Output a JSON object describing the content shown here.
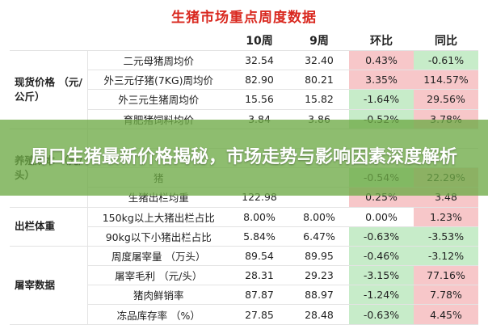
{
  "title": "生猪市场重点周度数据",
  "overlay_text": "周口生猪最新价格揭秘，市场走势与影响因素深度解析",
  "headers": {
    "week10": "10周",
    "week9": "9周",
    "mom": "环比",
    "yoy": "同比"
  },
  "categories": {
    "price": "现货价格 （元/公斤）",
    "cost": "养殖成本 （元/头）",
    "slaughter_out": "出栏体重",
    "slaughter": "屠宰数据"
  },
  "rows": [
    {
      "metric": "二元母猪周均价",
      "w10": "32.54",
      "w9": "32.40",
      "mom": "0.43%",
      "yoy": "-0.61%",
      "mom_dir": "up",
      "yoy_dir": "down"
    },
    {
      "metric": "外三元仔猪(7KG)周均价",
      "w10": "82.90",
      "w9": "80.21",
      "mom": "3.35%",
      "yoy": "114.57%",
      "mom_dir": "up",
      "yoy_dir": "up"
    },
    {
      "metric": "外三元生猪周均价",
      "w10": "15.56",
      "w9": "15.82",
      "mom": "-1.64%",
      "yoy": "29.56%",
      "mom_dir": "down",
      "yoy_dir": "up"
    },
    {
      "metric": "育肥猪饲料均价",
      "w10": "3.84",
      "w9": "3.86",
      "mom": "-0.52%",
      "yoy": "3.78%",
      "mom_dir": "down",
      "yoy_dir": "up"
    },
    {
      "metric": "",
      "w10": "",
      "w9": "",
      "mom": "",
      "yoy": "",
      "mom_dir": "",
      "yoy_dir": ""
    },
    {
      "metric": "",
      "w10": "",
      "w9": "",
      "mom": "",
      "yoy": "",
      "mom_dir": "",
      "yoy_dir": ""
    },
    {
      "metric": "猪",
      "w10": "",
      "w9": "",
      "mom": "-0.54%",
      "yoy": "22.29%",
      "mom_dir": "down",
      "yoy_dir": "up"
    },
    {
      "metric": "生猪出栏均重",
      "w10": "122.98",
      "w9": "",
      "mom": "0.25%",
      "yoy": "3.48",
      "mom_dir": "up",
      "yoy_dir": "up"
    },
    {
      "metric": "150kg以上大猪出栏占比",
      "w10": "8.00%",
      "w9": "8.00%",
      "mom": "0.00%",
      "yoy": "1.23%",
      "mom_dir": "",
      "yoy_dir": "up"
    },
    {
      "metric": "90kg以下小猪出栏占比",
      "w10": "5.84%",
      "w9": "6.47%",
      "mom": "-0.63%",
      "yoy": "-3.53%",
      "mom_dir": "down",
      "yoy_dir": "down"
    },
    {
      "metric": "周度屠宰量 （万头）",
      "w10": "89.54",
      "w9": "89.95",
      "mom": "-0.46%",
      "yoy": "-3.12%",
      "mom_dir": "down",
      "yoy_dir": "down"
    },
    {
      "metric": "屠宰毛利 （元/头）",
      "w10": "28.31",
      "w9": "29.23",
      "mom": "-3.15%",
      "yoy": "77.16%",
      "mom_dir": "down",
      "yoy_dir": "up"
    },
    {
      "metric": "猪肉鲜销率",
      "w10": "87.87",
      "w9": "88.97",
      "mom": "-1.24%",
      "yoy": "7.78%",
      "mom_dir": "down",
      "yoy_dir": "up"
    },
    {
      "metric": "冻品库存率 （%）",
      "w10": "27.85",
      "w9": "28.48",
      "mom": "-0.63%",
      "yoy": "4.45%",
      "mom_dir": "down",
      "yoy_dir": "up"
    }
  ],
  "colors": {
    "title": "#d9281f",
    "up": "#f7c7c9",
    "down": "#c7ecc9",
    "overlay": "#6eaa46"
  }
}
